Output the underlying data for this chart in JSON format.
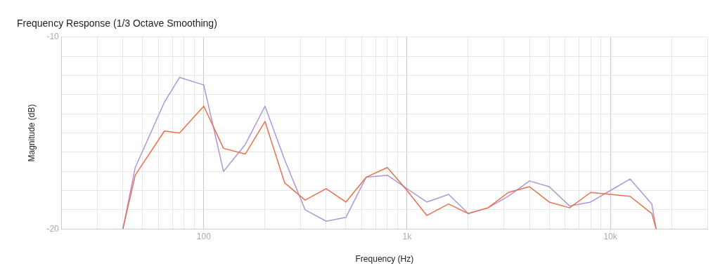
{
  "chart_data": {
    "type": "line",
    "title": "Frequency Response (1/3 Octave Smoothing)",
    "xlabel": "Frequency (Hz)",
    "ylabel": "Magnitude (dB)",
    "x": [
      40,
      46,
      64,
      76,
      100,
      125,
      160,
      200,
      250,
      315,
      400,
      500,
      630,
      800,
      1000,
      1250,
      1600,
      2000,
      2500,
      3150,
      4000,
      5000,
      6300,
      8000,
      10000,
      12500,
      16000,
      16800
    ],
    "series": [
      {
        "color": "#e8704a",
        "values": [
          -20,
          -17.2,
          -14.9,
          -15.0,
          -13.6,
          -15.8,
          -16.1,
          -14.4,
          -17.6,
          -18.5,
          -17.9,
          -18.6,
          -17.3,
          -16.8,
          -18.0,
          -19.3,
          -18.7,
          -19.2,
          -18.9,
          -18.1,
          -17.8,
          -18.6,
          -18.9,
          -18.1,
          -18.2,
          -18.3,
          -19.2,
          -20
        ]
      },
      {
        "color": "#b195d8",
        "values": [
          -20,
          -16.8,
          -13.4,
          -12.1,
          -12.5,
          -17.0,
          -15.6,
          -13.6,
          -16.4,
          -19.0,
          -19.6,
          -19.4,
          -17.3,
          -17.2,
          -17.9,
          -18.6,
          -18.2,
          -19.2,
          -18.9,
          -18.3,
          -17.5,
          -17.8,
          -18.8,
          -18.6,
          -18.0,
          -17.4,
          -18.7,
          -20
        ]
      }
    ],
    "log": "x",
    "xlim": [
      20,
      30000
    ],
    "xticks": [
      {
        "value": 20,
        "label": null
      },
      {
        "value": 30,
        "label": null
      },
      {
        "value": 40,
        "label": null
      },
      {
        "value": 50,
        "label": null
      },
      {
        "value": 60,
        "label": null
      },
      {
        "value": 70,
        "label": null
      },
      {
        "value": 80,
        "label": null
      },
      {
        "value": 90,
        "label": null
      },
      {
        "value": 100,
        "label": "100"
      },
      {
        "value": 200,
        "label": null
      },
      {
        "value": 300,
        "label": null
      },
      {
        "value": 400,
        "label": null
      },
      {
        "value": 500,
        "label": null
      },
      {
        "value": 600,
        "label": null
      },
      {
        "value": 700,
        "label": null
      },
      {
        "value": 800,
        "label": null
      },
      {
        "value": 900,
        "label": null
      },
      {
        "value": 1000,
        "label": "1k"
      },
      {
        "value": 2000,
        "label": null
      },
      {
        "value": 3000,
        "label": null
      },
      {
        "value": 4000,
        "label": null
      },
      {
        "value": 5000,
        "label": null
      },
      {
        "value": 6000,
        "label": null
      },
      {
        "value": 7000,
        "label": null
      },
      {
        "value": 8000,
        "label": null
      },
      {
        "value": 9000,
        "label": null
      },
      {
        "value": 10000,
        "label": "10k"
      },
      {
        "value": 20000,
        "label": null
      },
      {
        "value": 30000,
        "label": null
      }
    ],
    "ylim": [
      -20,
      -10
    ],
    "yticks": [
      -20,
      {
        "value": -19,
        "label": null
      },
      {
        "value": -18,
        "label": null
      },
      {
        "value": -17,
        "label": null
      },
      {
        "value": -16,
        "label": null
      },
      {
        "value": -15,
        "label": null
      },
      {
        "value": -14,
        "label": null
      },
      {
        "value": -13,
        "label": null
      },
      {
        "value": -12,
        "label": null
      },
      {
        "value": -11,
        "label": null
      },
      -10
    ],
    "grid": true,
    "legend": false,
    "marker": "none",
    "line_style": "solid"
  }
}
